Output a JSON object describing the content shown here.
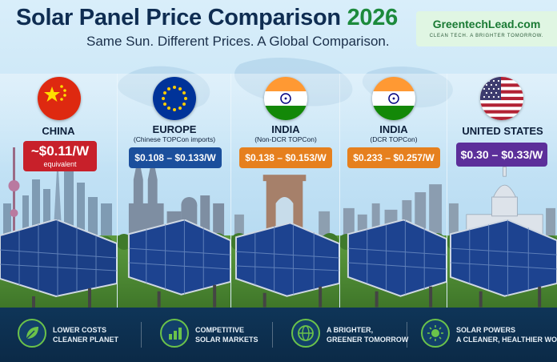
{
  "header": {
    "title_main": "Solar Panel Price Comparison",
    "title_year": "2026",
    "subtitle": "Same Sun. Different Prices. A Global Comparison."
  },
  "brand": {
    "name": "GreentechLead.com",
    "tagline": "CLEAN TECH. A BRIGHTER TOMORROW."
  },
  "regions": [
    {
      "country": "CHINA",
      "note": "",
      "price": "~$0.11/W",
      "price_note": "equivalent",
      "color": "#c8202a",
      "flag": "china-flag-icon"
    },
    {
      "country": "EUROPE",
      "note": "(Chinese TOPCon imports)",
      "price": "$0.108 – $0.133/W",
      "price_note": "",
      "color": "#1b4f9c",
      "flag": "eu-flag-icon"
    },
    {
      "country": "INDIA",
      "note": "(Non-DCR TOPCon)",
      "price": "$0.138 – $0.153/W",
      "price_note": "",
      "color": "#e6801e",
      "flag": "india-flag-icon"
    },
    {
      "country": "INDIA",
      "note": "(DCR TOPCon)",
      "price": "$0.233 – $0.257/W",
      "price_note": "",
      "color": "#e6801e",
      "flag": "india-flag-icon"
    },
    {
      "country": "UNITED STATES",
      "note": "",
      "price": "$0.30 – $0.33/W",
      "price_note": "",
      "color": "#5c2f9a",
      "flag": "us-flag-icon"
    }
  ],
  "features": [
    {
      "line1": "LOWER COSTS",
      "line2": "CLEANER PLANET",
      "icon": "leaf-icon"
    },
    {
      "line1": "COMPETITIVE",
      "line2": "SOLAR MARKETS",
      "icon": "bar-chart-icon"
    },
    {
      "line1": "A BRIGHTER,",
      "line2": "GREENER TOMORROW",
      "icon": "globe-icon"
    },
    {
      "line1": "SOLAR POWERS",
      "line2": "A CLEANER, HEALTHIER WORLD",
      "icon": "sun-icon"
    }
  ]
}
